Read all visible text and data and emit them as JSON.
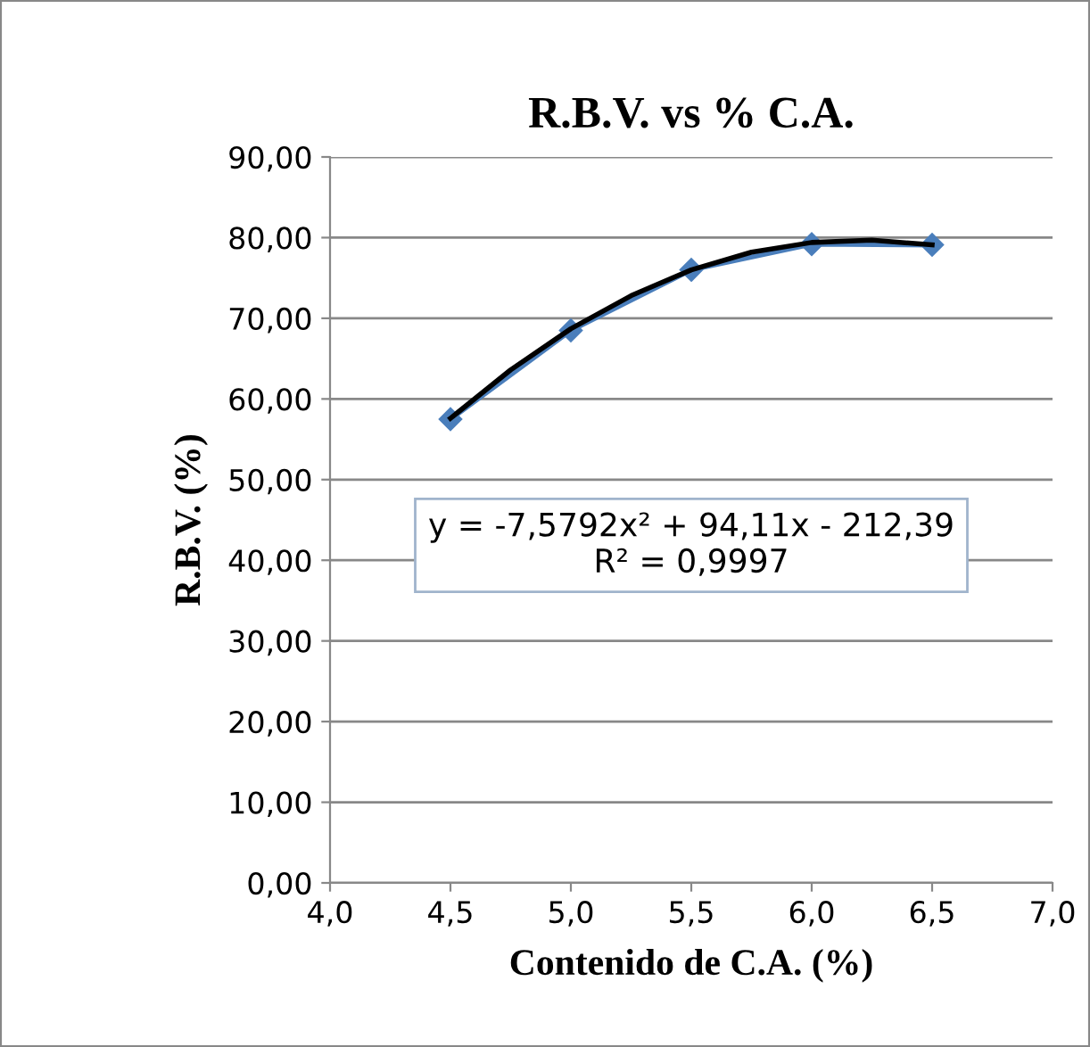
{
  "chart_data": {
    "type": "line",
    "title": "R.B.V. vs % C.A.",
    "xlabel": "Contenido de C.A. (%)",
    "ylabel": "R.B.V. (%)",
    "x": [
      4.5,
      5.0,
      5.5,
      6.0,
      6.5
    ],
    "series": [
      {
        "color": "#4a7ebb",
        "values": [
          57.5,
          68.5,
          76.0,
          79.2,
          79.1
        ],
        "marker": "diamond"
      },
      {
        "color": "#000000",
        "x": [
          4.5,
          4.75,
          5.0,
          5.25,
          5.5,
          5.75,
          6.0,
          6.25,
          6.5
        ],
        "values": [
          57.6,
          63.6,
          68.7,
          72.8,
          76.0,
          78.2,
          79.4,
          79.7,
          79.1
        ],
        "marker": "none"
      }
    ],
    "xlim": [
      4.0,
      7.0
    ],
    "xticks": [
      {
        "value": 4.0,
        "label": "4,0"
      },
      {
        "value": 4.5,
        "label": "4,5"
      },
      {
        "value": 5.0,
        "label": "5,0"
      },
      {
        "value": 5.5,
        "label": "5,5"
      },
      {
        "value": 6.0,
        "label": "6,0"
      },
      {
        "value": 6.5,
        "label": "6,5"
      },
      {
        "value": 7.0,
        "label": "7,0"
      }
    ],
    "ylim": [
      0,
      90
    ],
    "yticks": [
      {
        "value": 0,
        "label": "0,00"
      },
      {
        "value": 10,
        "label": "10,00"
      },
      {
        "value": 20,
        "label": "20,00"
      },
      {
        "value": 30,
        "label": "30,00"
      },
      {
        "value": 40,
        "label": "40,00"
      },
      {
        "value": 50,
        "label": "50,00"
      },
      {
        "value": 60,
        "label": "60,00"
      },
      {
        "value": 70,
        "label": "70,00"
      },
      {
        "value": 80,
        "label": "80,00"
      },
      {
        "value": 90,
        "label": "90,00"
      }
    ],
    "grid": "y",
    "legend": false,
    "annotations": [
      "y = -7,5792x² + 94,11x - 212,39\nR² = 0,9997"
    ]
  }
}
